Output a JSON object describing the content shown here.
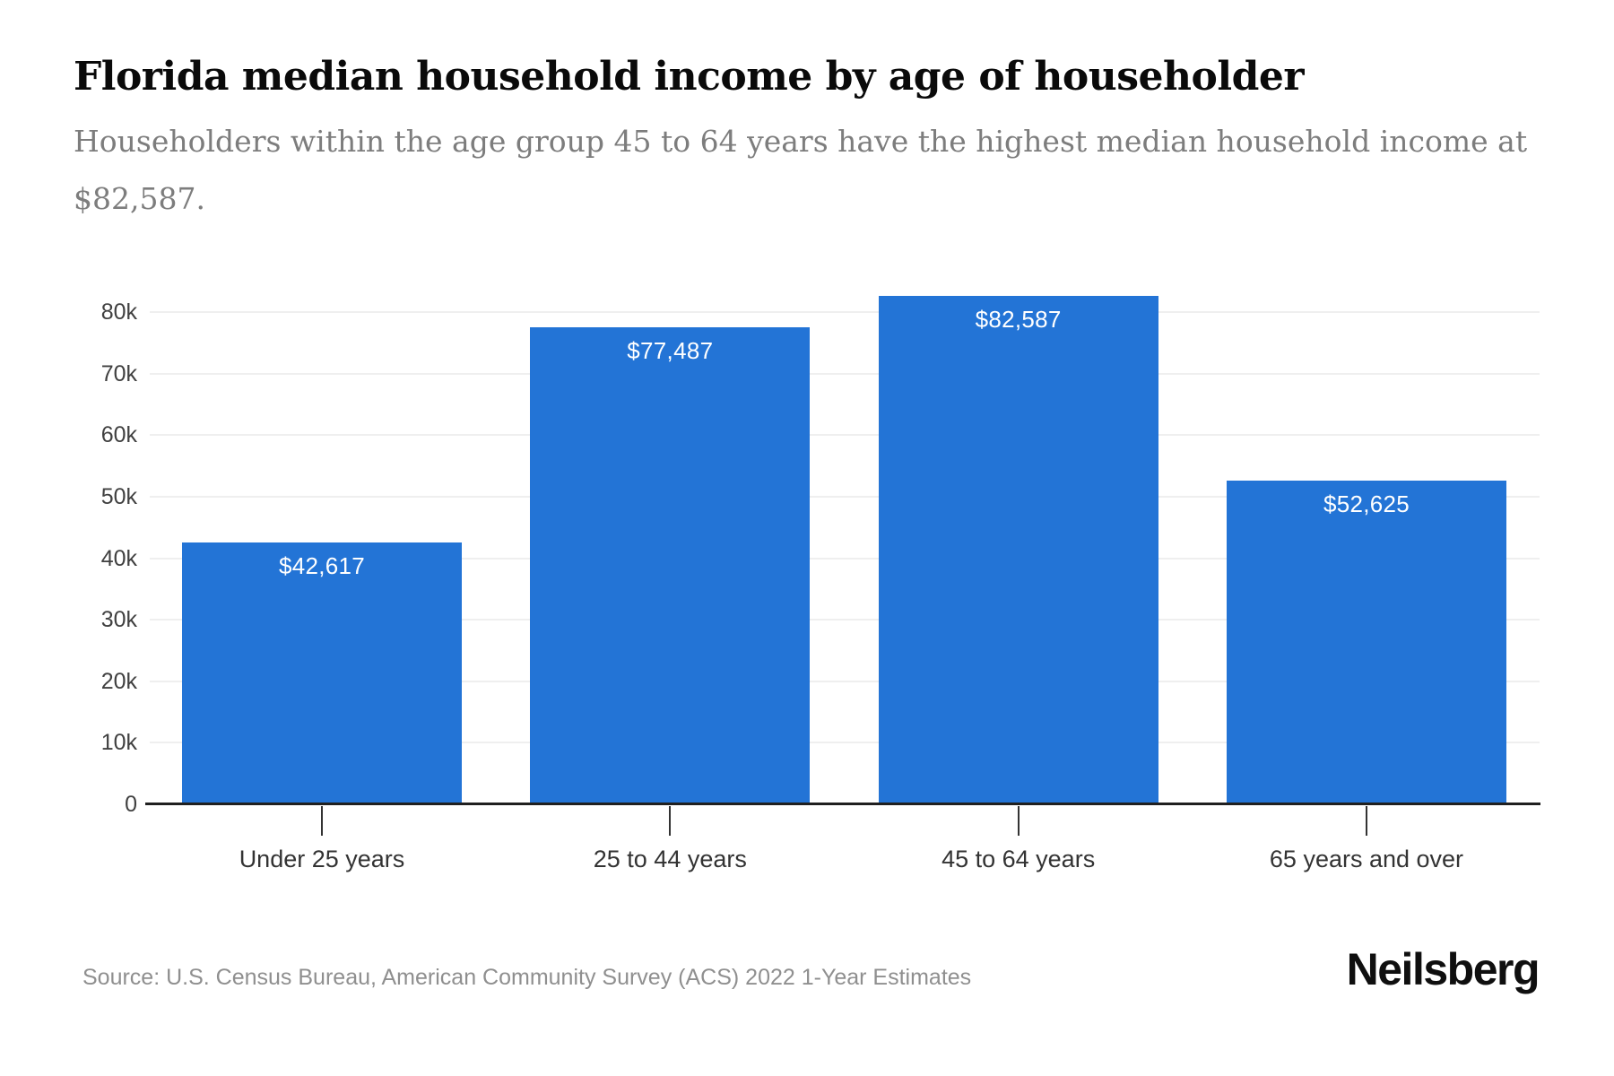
{
  "page": {
    "background_color": "#ffffff"
  },
  "header": {
    "title": "Florida median household income by age of householder",
    "subtitle": "Householders within the age group 45 to 64 years have the highest median household income at $82,587.",
    "subtitle_lines": [
      "Householders within the age group 45 to 64 years have the highest median household income at",
      "$82,587."
    ]
  },
  "chart_data": {
    "type": "bar",
    "title": "Florida median household income by age of householder",
    "categories": [
      "Under 25 years",
      "25 to 44 years",
      "45 to 64 years",
      "65 years and over"
    ],
    "values": [
      42617,
      77487,
      82587,
      52625
    ],
    "value_labels": [
      "$42,617",
      "$77,487",
      "$82,587",
      "$52,625"
    ],
    "xlabel": "",
    "ylabel": "",
    "ylim": [
      0,
      84000
    ],
    "yticks": [
      {
        "value": 0,
        "label": "0"
      },
      {
        "value": 10000,
        "label": "10k"
      },
      {
        "value": 20000,
        "label": "20k"
      },
      {
        "value": 30000,
        "label": "30k"
      },
      {
        "value": 40000,
        "label": "40k"
      },
      {
        "value": 50000,
        "label": "50k"
      },
      {
        "value": 60000,
        "label": "60k"
      },
      {
        "value": 70000,
        "label": "70k"
      },
      {
        "value": 80000,
        "label": "80k"
      }
    ],
    "grid": true,
    "legend": false,
    "bar_color": "#2374d6",
    "value_label_color": "#ffffff",
    "gridline_color": "#efefef",
    "axis_color": "#202020"
  },
  "footer": {
    "source": "Source: U.S. Census Bureau, American Community Survey (ACS) 2022 1-Year Estimates",
    "logo_text": "Neilsberg"
  }
}
